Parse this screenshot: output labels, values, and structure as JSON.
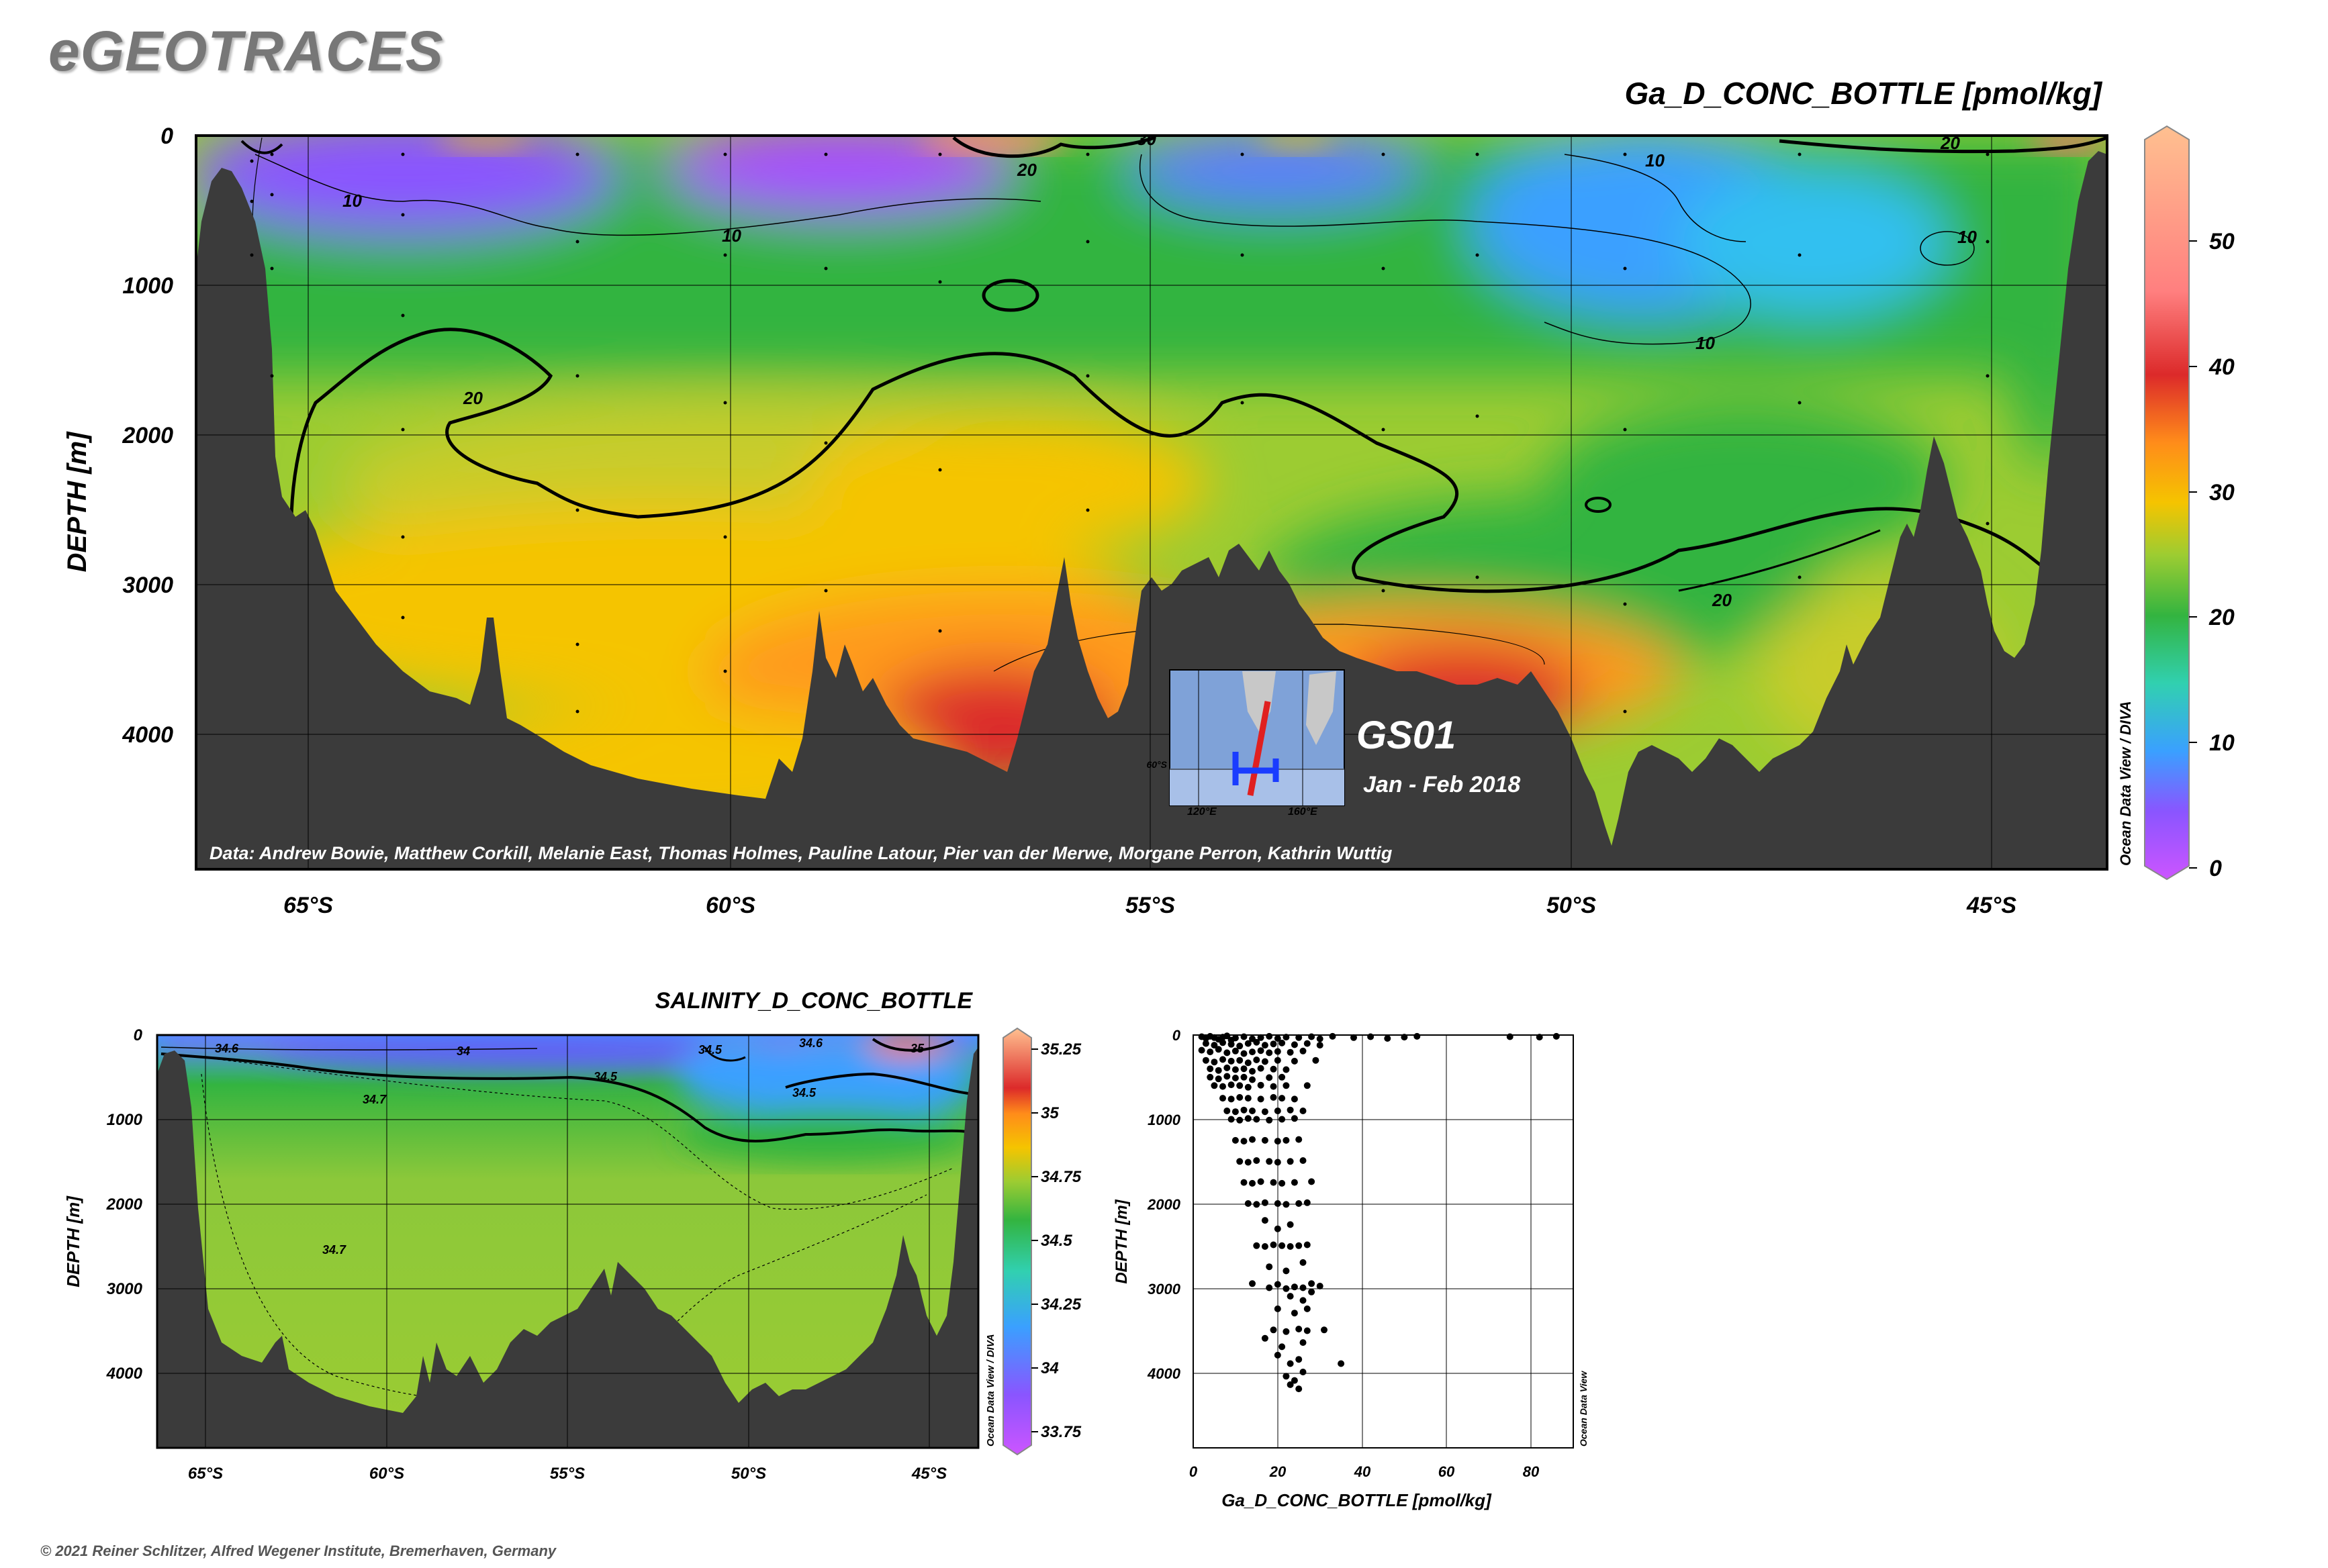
{
  "logo": "eGEOTRACES",
  "copyright": "© 2021 Reiner Schlitzer, Alfred Wegener Institute, Bremerhaven, Germany",
  "main_section": {
    "title": "Ga_D_CONC_BOTTLE [pmol/kg]",
    "ylabel": "DEPTH [m]",
    "credit": "Data: Andrew Bowie, Matthew Corkill, Melanie East, Thomas Holmes, Pauline Latour, Pier van der Merwe, Morgane Perron, Kathrin Wuttig",
    "cruise": "GS01",
    "period": "Jan - Feb 2018",
    "software": "Ocean Data View / DIVA",
    "inset_lon_labels": [
      "120°E",
      "160°E"
    ],
    "inset_lat_label": "60°S"
  },
  "salinity_section": {
    "title": "SALINITY_D_CONC_BOTTLE",
    "ylabel": "DEPTH [m]",
    "software": "Ocean Data View / DIVA"
  },
  "scatter_panel": {
    "software": "Ocean Data View"
  },
  "colors": {
    "land": "#3b3b3b",
    "purple": "#a64dff",
    "blue": "#3aa0ff",
    "cyan": "#31d0e0",
    "green": "#33b440",
    "yellowgreen": "#9ccc32",
    "yellow": "#f5c400",
    "orange": "#ff8c1a",
    "red": "#dc2a2a",
    "peach": "#ffb888"
  },
  "chart_data": [
    {
      "type": "heatmap",
      "title": "Ga_D_CONC_BOTTLE [pmol/kg]",
      "xlabel": "",
      "ylabel": "DEPTH [m]",
      "x_ticks": [
        "65°S",
        "60°S",
        "55°S",
        "50°S",
        "45°S"
      ],
      "x_tick_values": [
        -65,
        -60,
        -55,
        -50,
        -45
      ],
      "y_ticks": [
        "0",
        "1000",
        "2000",
        "3000",
        "4000"
      ],
      "y_tick_values": [
        0,
        1000,
        2000,
        3000,
        4000
      ],
      "xlim": [
        -66.3,
        -43.6
      ],
      "ylim": [
        4900,
        0
      ],
      "colorbar": {
        "ticks": [
          "0",
          "10",
          "20",
          "30",
          "40",
          "50"
        ],
        "tick_values": [
          0,
          10,
          20,
          30,
          40,
          50
        ],
        "range": [
          0,
          58
        ]
      },
      "contour_labels": [
        "10",
        "10",
        "10",
        "10",
        "10",
        "20",
        "20",
        "20",
        "20",
        "30"
      ]
    },
    {
      "type": "heatmap",
      "title": "SALINITY_D_CONC_BOTTLE",
      "xlabel": "",
      "ylabel": "DEPTH [m]",
      "x_ticks": [
        "65°S",
        "60°S",
        "55°S",
        "50°S",
        "45°S"
      ],
      "x_tick_values": [
        -65,
        -60,
        -55,
        -50,
        -45
      ],
      "y_ticks": [
        "0",
        "1000",
        "2000",
        "3000",
        "4000"
      ],
      "y_tick_values": [
        0,
        1000,
        2000,
        3000,
        4000
      ],
      "xlim": [
        -66.3,
        -43.6
      ],
      "ylim": [
        4900,
        0
      ],
      "colorbar": {
        "ticks": [
          "33.75",
          "34",
          "34.25",
          "34.5",
          "34.75",
          "35",
          "35.25"
        ],
        "tick_values": [
          33.75,
          34,
          34.25,
          34.5,
          34.75,
          35,
          35.25
        ],
        "range": [
          33.65,
          35.35
        ]
      },
      "contour_labels": [
        "34.6",
        "34",
        "34.5",
        "34.5",
        "34.6",
        "35",
        "34.5",
        "34.7",
        "34.7"
      ]
    },
    {
      "type": "scatter",
      "title": "",
      "xlabel": "Ga_D_CONC_BOTTLE [pmol/kg]",
      "ylabel": "DEPTH [m]",
      "x_ticks": [
        "0",
        "20",
        "40",
        "60",
        "80"
      ],
      "x_tick_values": [
        0,
        20,
        40,
        60,
        80
      ],
      "y_ticks": [
        "0",
        "1000",
        "2000",
        "3000",
        "4000"
      ],
      "y_tick_values": [
        0,
        1000,
        2000,
        3000,
        4000
      ],
      "xlim": [
        0,
        90
      ],
      "ylim": [
        4900,
        0
      ],
      "points": [
        [
          2,
          20
        ],
        [
          3,
          40
        ],
        [
          4,
          15
        ],
        [
          5,
          30
        ],
        [
          6,
          50
        ],
        [
          7,
          25
        ],
        [
          8,
          10
        ],
        [
          9,
          60
        ],
        [
          10,
          35
        ],
        [
          12,
          20
        ],
        [
          14,
          45
        ],
        [
          16,
          30
        ],
        [
          18,
          15
        ],
        [
          20,
          40
        ],
        [
          22,
          25
        ],
        [
          25,
          30
        ],
        [
          28,
          20
        ],
        [
          30,
          45
        ],
        [
          33,
          15
        ],
        [
          38,
          30
        ],
        [
          42,
          20
        ],
        [
          46,
          40
        ],
        [
          50,
          25
        ],
        [
          53,
          15
        ],
        [
          75,
          20
        ],
        [
          82,
          25
        ],
        [
          86,
          15
        ],
        [
          3,
          100
        ],
        [
          5,
          120
        ],
        [
          7,
          90
        ],
        [
          9,
          110
        ],
        [
          11,
          130
        ],
        [
          13,
          100
        ],
        [
          15,
          85
        ],
        [
          17,
          120
        ],
        [
          19,
          105
        ],
        [
          21,
          95
        ],
        [
          24,
          115
        ],
        [
          27,
          100
        ],
        [
          30,
          120
        ],
        [
          2,
          180
        ],
        [
          4,
          200
        ],
        [
          6,
          170
        ],
        [
          8,
          210
        ],
        [
          10,
          190
        ],
        [
          12,
          220
        ],
        [
          14,
          200
        ],
        [
          16,
          185
        ],
        [
          18,
          210
        ],
        [
          20,
          195
        ],
        [
          23,
          205
        ],
        [
          26,
          190
        ],
        [
          3,
          300
        ],
        [
          5,
          320
        ],
        [
          7,
          290
        ],
        [
          9,
          310
        ],
        [
          11,
          300
        ],
        [
          13,
          330
        ],
        [
          15,
          295
        ],
        [
          17,
          315
        ],
        [
          20,
          300
        ],
        [
          24,
          310
        ],
        [
          29,
          300
        ],
        [
          4,
          400
        ],
        [
          6,
          420
        ],
        [
          8,
          390
        ],
        [
          10,
          410
        ],
        [
          12,
          400
        ],
        [
          14,
          430
        ],
        [
          16,
          395
        ],
        [
          19,
          405
        ],
        [
          22,
          410
        ],
        [
          4,
          500
        ],
        [
          6,
          520
        ],
        [
          8,
          490
        ],
        [
          10,
          510
        ],
        [
          12,
          500
        ],
        [
          14,
          530
        ],
        [
          18,
          505
        ],
        [
          21,
          500
        ],
        [
          5,
          600
        ],
        [
          7,
          610
        ],
        [
          9,
          590
        ],
        [
          11,
          600
        ],
        [
          13,
          620
        ],
        [
          16,
          595
        ],
        [
          19,
          610
        ],
        [
          22,
          600
        ],
        [
          27,
          600
        ],
        [
          7,
          750
        ],
        [
          9,
          760
        ],
        [
          11,
          740
        ],
        [
          13,
          750
        ],
        [
          16,
          760
        ],
        [
          19,
          740
        ],
        [
          21,
          750
        ],
        [
          24,
          760
        ],
        [
          8,
          900
        ],
        [
          10,
          910
        ],
        [
          12,
          890
        ],
        [
          14,
          900
        ],
        [
          17,
          910
        ],
        [
          20,
          900
        ],
        [
          23,
          890
        ],
        [
          26,
          900
        ],
        [
          9,
          1000
        ],
        [
          11,
          1010
        ],
        [
          13,
          990
        ],
        [
          15,
          1000
        ],
        [
          18,
          1010
        ],
        [
          21,
          1000
        ],
        [
          24,
          990
        ],
        [
          10,
          1250
        ],
        [
          12,
          1260
        ],
        [
          14,
          1240
        ],
        [
          17,
          1250
        ],
        [
          20,
          1260
        ],
        [
          22,
          1250
        ],
        [
          25,
          1240
        ],
        [
          11,
          1500
        ],
        [
          13,
          1510
        ],
        [
          15,
          1490
        ],
        [
          18,
          1500
        ],
        [
          20,
          1510
        ],
        [
          23,
          1500
        ],
        [
          26,
          1490
        ],
        [
          12,
          1750
        ],
        [
          14,
          1760
        ],
        [
          16,
          1740
        ],
        [
          19,
          1750
        ],
        [
          21,
          1760
        ],
        [
          24,
          1750
        ],
        [
          28,
          1740
        ],
        [
          13,
          2000
        ],
        [
          15,
          2010
        ],
        [
          17,
          1990
        ],
        [
          20,
          2000
        ],
        [
          22,
          2010
        ],
        [
          25,
          2000
        ],
        [
          27,
          1990
        ],
        [
          17,
          2200
        ],
        [
          20,
          2300
        ],
        [
          23,
          2250
        ],
        [
          15,
          2500
        ],
        [
          17,
          2510
        ],
        [
          19,
          2490
        ],
        [
          21,
          2500
        ],
        [
          23,
          2510
        ],
        [
          25,
          2500
        ],
        [
          27,
          2490
        ],
        [
          18,
          2750
        ],
        [
          22,
          2800
        ],
        [
          26,
          2700
        ],
        [
          14,
          2950
        ],
        [
          18,
          3000
        ],
        [
          20,
          2960
        ],
        [
          22,
          3010
        ],
        [
          24,
          2990
        ],
        [
          26,
          3000
        ],
        [
          28,
          2950
        ],
        [
          30,
          2980
        ],
        [
          23,
          3100
        ],
        [
          26,
          3150
        ],
        [
          28,
          3050
        ],
        [
          20,
          3250
        ],
        [
          24,
          3300
        ],
        [
          27,
          3250
        ],
        [
          19,
          3500
        ],
        [
          22,
          3520
        ],
        [
          25,
          3490
        ],
        [
          27,
          3510
        ],
        [
          31,
          3500
        ],
        [
          17,
          3600
        ],
        [
          21,
          3700
        ],
        [
          26,
          3650
        ],
        [
          20,
          3800
        ],
        [
          23,
          3900
        ],
        [
          25,
          3850
        ],
        [
          35,
          3900
        ],
        [
          22,
          4050
        ],
        [
          24,
          4100
        ],
        [
          26,
          4000
        ],
        [
          25,
          4200
        ],
        [
          23,
          4150
        ]
      ]
    }
  ]
}
